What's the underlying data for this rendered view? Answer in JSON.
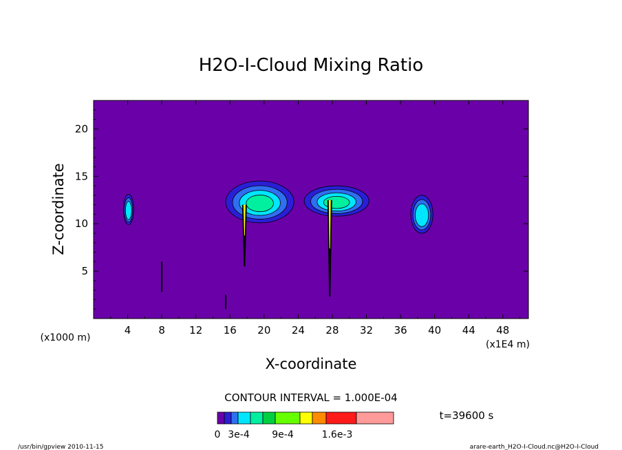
{
  "chart_data": {
    "type": "heatmap",
    "title": "H2O-I-Cloud Mixing Ratio",
    "xlabel": "X-coordinate",
    "ylabel": "Z-coordinate",
    "x_unit_left": "(x1000 m)",
    "x_unit_right": "(x1E4 m)",
    "xlim": [
      0,
      51
    ],
    "ylim": [
      0,
      23
    ],
    "x_ticks": [
      4,
      8,
      12,
      16,
      20,
      24,
      28,
      32,
      36,
      40,
      44,
      48
    ],
    "y_ticks": [
      5,
      10,
      15,
      20
    ],
    "contour_interval_text": "CONTOUR INTERVAL = 1.000E-04",
    "time_text": "t=39600 s",
    "colorbar": {
      "colors": [
        "#6a00a8",
        "#2a1fd6",
        "#2f6ff0",
        "#00e6ff",
        "#00f0a0",
        "#00d040",
        "#66ff00",
        "#ffff00",
        "#ff8c00",
        "#ff1a1a",
        "#ff9a9a"
      ],
      "labels": [
        "0",
        "3e-4",
        "9e-4",
        "1.6e-3"
      ]
    },
    "clouds": [
      {
        "x": 4.1,
        "z": 11.5,
        "rx": 0.6,
        "rz": 1.6,
        "levels": 3
      },
      {
        "x": 19.5,
        "z": 12.3,
        "rx": 4.0,
        "rz": 2.2,
        "levels": 4
      },
      {
        "x": 28.5,
        "z": 12.4,
        "rx": 3.8,
        "rz": 1.6,
        "levels": 4
      },
      {
        "x": 38.5,
        "z": 11.0,
        "rx": 1.3,
        "rz": 2.0,
        "levels": 3
      }
    ],
    "shafts": [
      {
        "x": 17.7,
        "z_top": 12.0,
        "z_bottom": 5.5
      },
      {
        "x": 27.7,
        "z_top": 12.5,
        "z_bottom": 2.3
      }
    ],
    "streaks": [
      {
        "x": 8.0,
        "z_top": 6.0,
        "z_bottom": 2.8
      },
      {
        "x": 15.5,
        "z_top": 2.5,
        "z_bottom": 1.0
      }
    ]
  },
  "footer": {
    "left": "/usr/bin/gpview  2010-11-15",
    "right": "arare-earth_H2O-I-Cloud.nc@H2O-I-Cloud"
  }
}
